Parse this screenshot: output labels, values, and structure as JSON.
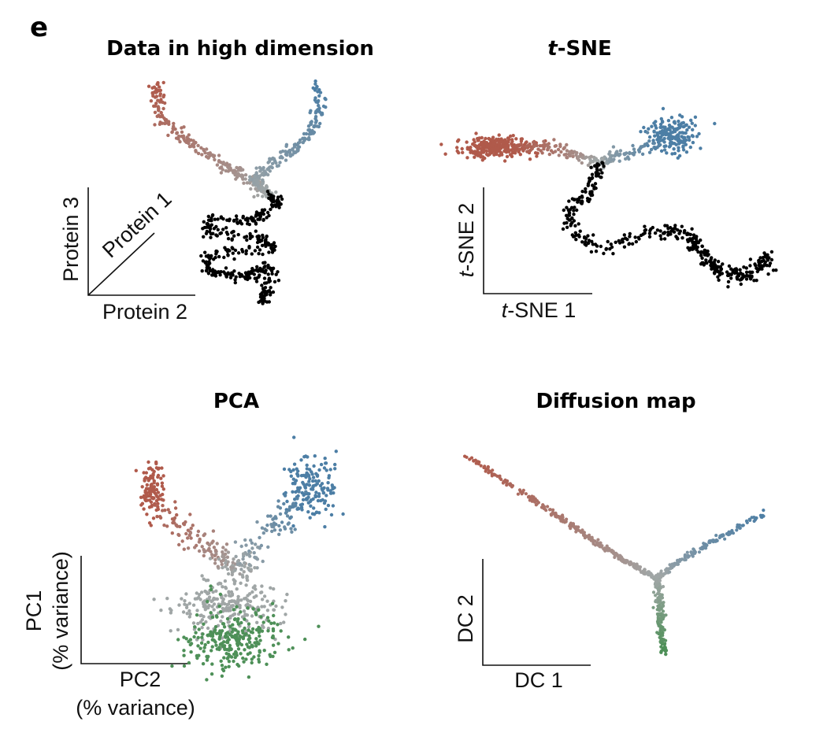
{
  "panel_label": "e",
  "colors": {
    "red": "#b05a4b",
    "blue": "#4c7ea5",
    "grey": "#a0a6a6",
    "green": "#4e9058"
  },
  "chart_data": [
    {
      "type": "scatter",
      "title": "Data in high dimension",
      "xlabel": "Protein 2",
      "ylabel": "Protein 3",
      "zlabel": "Protein 1",
      "ticks": false,
      "grid": false,
      "branches": [
        "red",
        "blue",
        "grey",
        "green"
      ]
    },
    {
      "type": "scatter",
      "title_italic": "t",
      "title_rest": "-SNE",
      "xlabel_italic": "t",
      "xlabel_rest": "-SNE 1",
      "ylabel_italic": "t",
      "ylabel_rest": "-SNE 2",
      "ticks": false,
      "grid": false,
      "branches": [
        "red",
        "blue",
        "grey",
        "green"
      ]
    },
    {
      "type": "scatter",
      "title": "PCA",
      "xlabel": "PC2",
      "xlabel_sub": "(% variance)",
      "ylabel": "PC1",
      "ylabel_sub": "(% variance)",
      "ticks": false,
      "grid": false,
      "branches": [
        "red",
        "blue",
        "grey",
        "green"
      ]
    },
    {
      "type": "scatter",
      "title": "Diffusion map",
      "xlabel": "DC 1",
      "ylabel": "DC 2",
      "ticks": false,
      "grid": false,
      "branches": [
        "red",
        "blue",
        "grey",
        "green"
      ]
    }
  ]
}
